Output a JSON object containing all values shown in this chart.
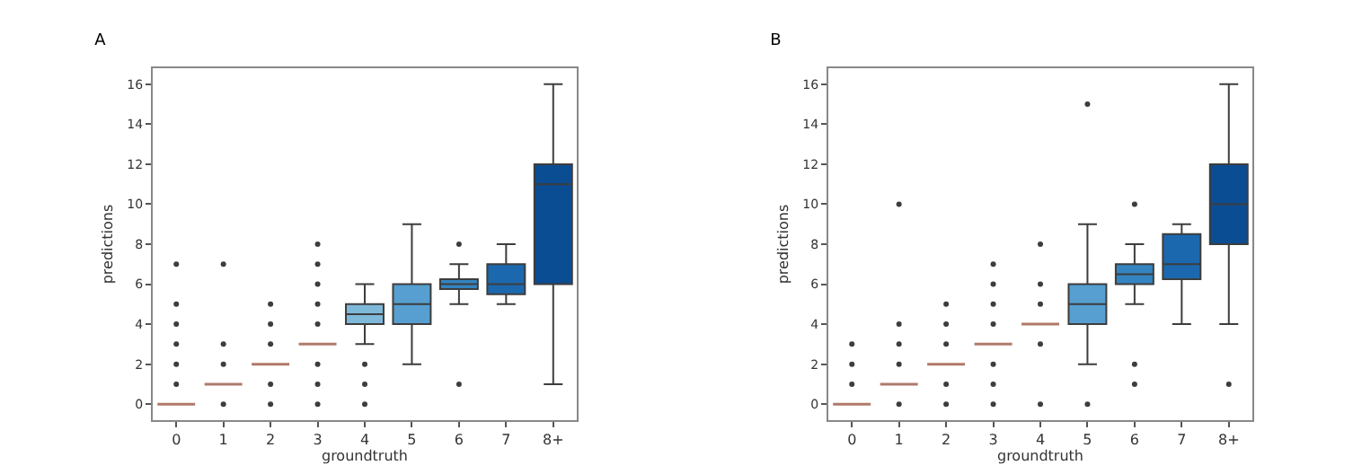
{
  "chart_data": [
    {
      "type": "box",
      "title": "A",
      "xlabel": "groundtruth",
      "ylabel": "predictions",
      "categories": [
        "0",
        "1",
        "2",
        "3",
        "4",
        "5",
        "6",
        "7",
        "8+"
      ],
      "colors": [
        "#b07a6a",
        "#b07a6a",
        "#b07a6a",
        "#b07a6a",
        "#7fb9da",
        "#569fd0",
        "#3484c1",
        "#1c68ae",
        "#0b4d93"
      ],
      "boxes": [
        {
          "low": 0,
          "q1": 0,
          "median": 0,
          "q3": 0,
          "high": 0,
          "outliers": [
            1,
            2,
            3,
            4,
            5,
            7
          ]
        },
        {
          "low": 1,
          "q1": 1,
          "median": 1,
          "q3": 1,
          "high": 1,
          "outliers": [
            0,
            2,
            3,
            7
          ]
        },
        {
          "low": 2,
          "q1": 2,
          "median": 2,
          "q3": 2,
          "high": 2,
          "outliers": [
            0,
            1,
            3,
            4,
            5
          ]
        },
        {
          "low": 3,
          "q1": 3,
          "median": 3,
          "q3": 3,
          "high": 3,
          "outliers": [
            0,
            1,
            2,
            4,
            5,
            6,
            7,
            8
          ]
        },
        {
          "low": 3,
          "q1": 4,
          "median": 4.5,
          "q3": 5,
          "high": 6,
          "outliers": [
            0,
            1,
            2
          ]
        },
        {
          "low": 2,
          "q1": 4,
          "median": 5,
          "q3": 6,
          "high": 9
        },
        {
          "low": 5,
          "q1": 5.75,
          "median": 6,
          "q3": 6.25,
          "high": 7,
          "outliers": [
            1,
            8
          ]
        },
        {
          "low": 5,
          "q1": 5.5,
          "median": 6,
          "q3": 7,
          "high": 8
        },
        {
          "low": 1,
          "q1": 6,
          "median": 11,
          "q3": 12,
          "high": 16
        }
      ],
      "ylim": [
        -0.8,
        16.8
      ],
      "yticks": [
        0,
        2,
        4,
        6,
        8,
        10,
        12,
        14,
        16
      ],
      "grid": false
    },
    {
      "type": "box",
      "title": "B",
      "xlabel": "groundtruth",
      "ylabel": "predictions",
      "categories": [
        "0",
        "1",
        "2",
        "3",
        "4",
        "5",
        "6",
        "7",
        "8+"
      ],
      "colors": [
        "#b07a6a",
        "#b07a6a",
        "#b07a6a",
        "#b07a6a",
        "#b07a6a",
        "#569fd0",
        "#3484c1",
        "#1c68ae",
        "#0b4d93"
      ],
      "boxes": [
        {
          "low": 0,
          "q1": 0,
          "median": 0,
          "q3": 0,
          "high": 0,
          "outliers": [
            1,
            2,
            3
          ]
        },
        {
          "low": 1,
          "q1": 1,
          "median": 1,
          "q3": 1,
          "high": 1,
          "outliers": [
            0,
            2,
            3,
            4,
            10
          ]
        },
        {
          "low": 2,
          "q1": 2,
          "median": 2,
          "q3": 2,
          "high": 2,
          "outliers": [
            0,
            1,
            3,
            4,
            5
          ]
        },
        {
          "low": 3,
          "q1": 3,
          "median": 3,
          "q3": 3,
          "high": 3,
          "outliers": [
            0,
            1,
            2,
            4,
            5,
            6,
            7
          ]
        },
        {
          "low": 4,
          "q1": 4,
          "median": 4,
          "q3": 4,
          "high": 4,
          "outliers": [
            0,
            3,
            5,
            6,
            8
          ]
        },
        {
          "low": 2,
          "q1": 4,
          "median": 5,
          "q3": 6,
          "high": 9,
          "outliers": [
            0,
            15
          ]
        },
        {
          "low": 5,
          "q1": 6,
          "median": 6.5,
          "q3": 7,
          "high": 8,
          "outliers": [
            1,
            2,
            10
          ]
        },
        {
          "low": 4,
          "q1": 6.25,
          "median": 7,
          "q3": 8.5,
          "high": 9
        },
        {
          "low": 4,
          "q1": 8,
          "median": 10,
          "q3": 12,
          "high": 16,
          "outliers": [
            1
          ]
        }
      ],
      "ylim": [
        -0.8,
        16.8
      ],
      "yticks": [
        0,
        2,
        4,
        6,
        8,
        10,
        12,
        14,
        16
      ],
      "grid": false
    }
  ]
}
